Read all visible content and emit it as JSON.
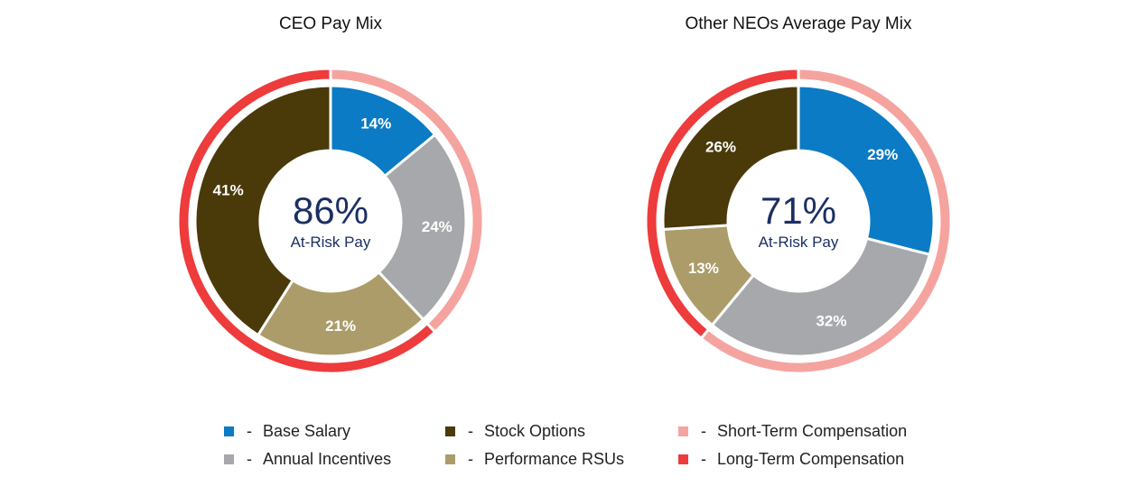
{
  "colors": {
    "base_salary": "#0a7bc4",
    "annual_incentives": "#a7a8ab",
    "stock_options": "#4a3a0a",
    "performance_rsus": "#ab9c6a",
    "short_term": "#f5a39f",
    "long_term": "#ee3b3b",
    "center_text": "#1b2f63"
  },
  "chart_data": [
    {
      "type": "pie",
      "title": "CEO Pay Mix",
      "center_value": "86%",
      "center_label": "At-Risk Pay",
      "inner_ring": [
        {
          "name": "Base Salary",
          "value": 14,
          "label": "14%",
          "color_key": "base_salary"
        },
        {
          "name": "Annual Incentives",
          "value": 24,
          "label": "24%",
          "color_key": "annual_incentives"
        },
        {
          "name": "Performance RSUs",
          "value": 21,
          "label": "21%",
          "color_key": "performance_rsus"
        },
        {
          "name": "Stock Options",
          "value": 41,
          "label": "41%",
          "color_key": "stock_options"
        }
      ],
      "outer_ring": [
        {
          "name": "Short-Term Compensation",
          "value": 38,
          "color_key": "short_term"
        },
        {
          "name": "Long-Term Compensation",
          "value": 62,
          "color_key": "long_term"
        }
      ]
    },
    {
      "type": "pie",
      "title": "Other NEOs Average Pay Mix",
      "center_value": "71%",
      "center_label": "At-Risk Pay",
      "inner_ring": [
        {
          "name": "Base Salary",
          "value": 29,
          "label": "29%",
          "color_key": "base_salary"
        },
        {
          "name": "Annual Incentives",
          "value": 32,
          "label": "32%",
          "color_key": "annual_incentives"
        },
        {
          "name": "Performance RSUs",
          "value": 13,
          "label": "13%",
          "color_key": "performance_rsus"
        },
        {
          "name": "Stock Options",
          "value": 26,
          "label": "26%",
          "color_key": "stock_options"
        }
      ],
      "outer_ring": [
        {
          "name": "Short-Term Compensation",
          "value": 61,
          "color_key": "short_term"
        },
        {
          "name": "Long-Term Compensation",
          "value": 39,
          "color_key": "long_term"
        }
      ]
    }
  ],
  "legend": [
    {
      "label": "Base Salary",
      "dash": "-",
      "color_key": "base_salary"
    },
    {
      "label": "Annual Incentives",
      "dash": "-",
      "color_key": "annual_incentives"
    },
    {
      "label": "Stock Options",
      "dash": "-",
      "color_key": "stock_options"
    },
    {
      "label": "Performance RSUs",
      "dash": "-",
      "color_key": "performance_rsus"
    },
    {
      "label": "Short-Term Compensation",
      "dash": "-",
      "color_key": "short_term"
    },
    {
      "label": "Long-Term Compensation",
      "dash": "-",
      "color_key": "long_term"
    }
  ]
}
